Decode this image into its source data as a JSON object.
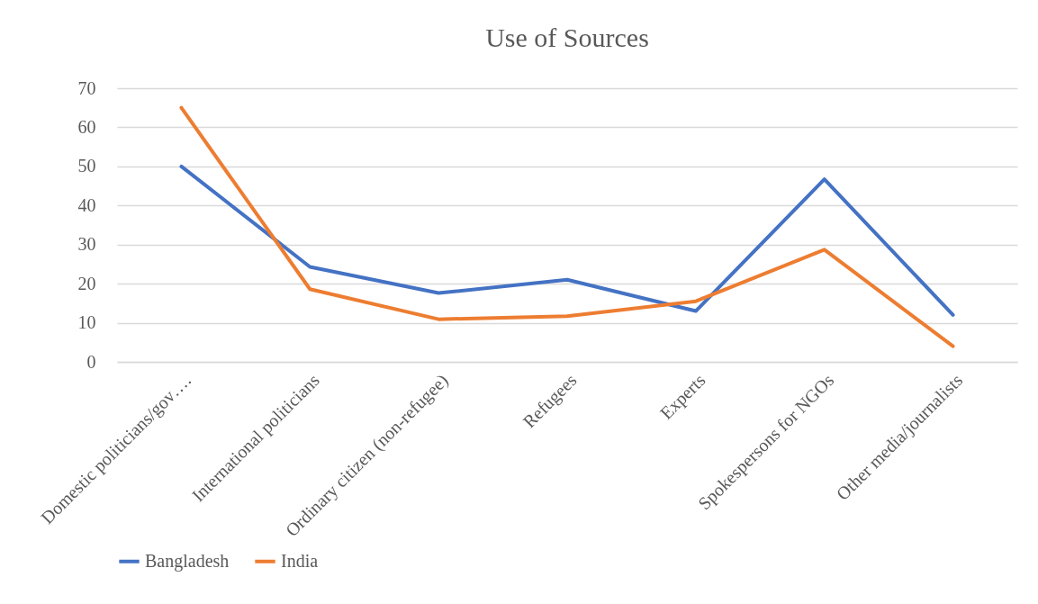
{
  "chart_data": {
    "type": "line",
    "title": "Use of Sources",
    "categories": [
      "Domestic politicians/gov….",
      "International politicians",
      "Ordinary citizen (non-refugee)",
      "Refugees",
      "Experts",
      "Spokespersons for NGOs",
      "Other media/journalists"
    ],
    "series": [
      {
        "name": "Bangladesh",
        "color": "#4472c4",
        "values": [
          50,
          24.3,
          17.6,
          21,
          13,
          46.7,
          12
        ]
      },
      {
        "name": "India",
        "color": "#ed7d31",
        "values": [
          65,
          18.6,
          10.9,
          11.7,
          15.5,
          28.7,
          4
        ]
      }
    ],
    "ylim": [
      0,
      70
    ],
    "yticks": [
      0,
      10,
      20,
      30,
      40,
      50,
      60,
      70
    ],
    "grid": "y",
    "legend": "bottom",
    "marker": "none",
    "line_style": "solid"
  }
}
